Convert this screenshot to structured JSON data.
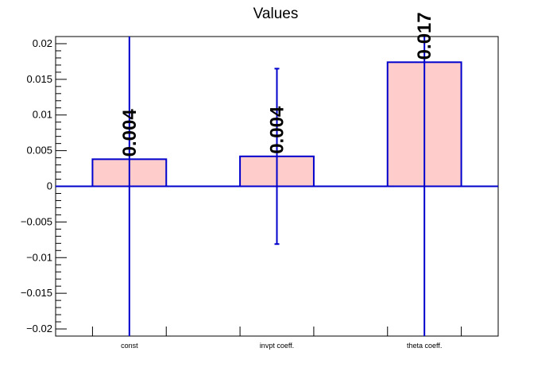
{
  "chart_data": {
    "type": "bar",
    "title": "Values",
    "xlabel": "",
    "ylabel": "",
    "categories": [
      "const",
      "invpt coeff.",
      "theta coeff."
    ],
    "values": [
      0.0038,
      0.0042,
      0.0174
    ],
    "errors": [
      0.045,
      0.0123,
      0.045
    ],
    "data_labels": [
      "0.004",
      "0.004",
      "0.017"
    ],
    "ylim": [
      -0.021,
      0.021
    ],
    "yticks": [
      {
        "value": -0.02,
        "label": "−0.02"
      },
      {
        "value": -0.015,
        "label": "−0.015"
      },
      {
        "value": -0.01,
        "label": "−0.01"
      },
      {
        "value": -0.005,
        "label": "−0.005"
      },
      {
        "value": 0,
        "label": "0"
      },
      {
        "value": 0.005,
        "label": "0.005"
      },
      {
        "value": 0.01,
        "label": "0.01"
      },
      {
        "value": 0.015,
        "label": "0.015"
      },
      {
        "value": 0.02,
        "label": "0.02"
      }
    ],
    "grid": false,
    "colors": {
      "bar_fill": "#ffcccc",
      "bar_stroke": "#0000cc",
      "error_bar": "#0000cc",
      "zero_line": "#0000cc"
    }
  }
}
